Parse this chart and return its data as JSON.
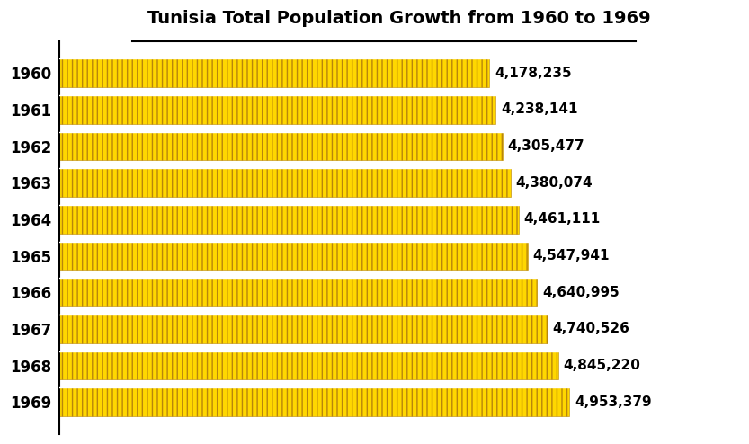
{
  "title": "Tunisia Total Population Growth from 1960 to 1969",
  "years": [
    "1960",
    "1961",
    "1962",
    "1963",
    "1964",
    "1965",
    "1966",
    "1967",
    "1968",
    "1969"
  ],
  "values": [
    4178235,
    4238141,
    4305477,
    4380074,
    4461111,
    4547941,
    4640995,
    4740526,
    4845220,
    4953379
  ],
  "labels": [
    "4,178,235",
    "4,238,141",
    "4,305,477",
    "4,380,074",
    "4,461,111",
    "4,547,941",
    "4,640,995",
    "4,740,526",
    "4,845,220",
    "4,953,379"
  ],
  "bar_color": "#FFD700",
  "bar_edge_color": "#B8860B",
  "background_color": "#FFFFFF",
  "title_fontsize": 14,
  "label_fontsize": 11,
  "tick_fontsize": 12,
  "xlim": [
    0,
    6600000
  ],
  "hatch": "|||"
}
